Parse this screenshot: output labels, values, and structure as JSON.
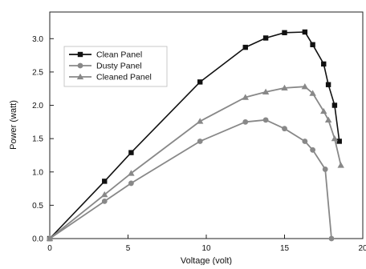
{
  "chart_data": {
    "type": "line",
    "title": "",
    "xlabel": "Voltage (volt)",
    "ylabel": "Power (watt)",
    "xlim": [
      0,
      20
    ],
    "ylim": [
      0,
      3.4
    ],
    "xticks": [
      0,
      5,
      10,
      15,
      20
    ],
    "yticks": [
      0.0,
      0.5,
      1.0,
      1.5,
      2.0,
      2.5,
      3.0
    ],
    "xtick_labels": [
      "0",
      "5",
      "10",
      "15",
      "20"
    ],
    "ytick_labels": [
      "0.0",
      "0.5",
      "1.0",
      "1.5",
      "2.0",
      "2.5",
      "3.0"
    ],
    "grid": false,
    "legend_position": "top-left",
    "series": [
      {
        "name": "Clean Panel",
        "marker": "square",
        "color": "#111111",
        "x": [
          0,
          3.5,
          5.2,
          9.6,
          12.5,
          13.8,
          15.0,
          16.3,
          16.8,
          17.5,
          17.8,
          18.2,
          18.5
        ],
        "y": [
          0,
          0.86,
          1.29,
          2.35,
          2.87,
          3.01,
          3.09,
          3.1,
          2.91,
          2.62,
          2.31,
          2.0,
          1.46
        ]
      },
      {
        "name": "Dusty Panel",
        "marker": "circle",
        "color": "#888888",
        "x": [
          0,
          3.5,
          5.2,
          9.6,
          12.5,
          13.8,
          15.0,
          16.3,
          16.8,
          17.6,
          18.0
        ],
        "y": [
          0,
          0.56,
          0.83,
          1.46,
          1.75,
          1.78,
          1.65,
          1.46,
          1.33,
          1.04,
          0
        ]
      },
      {
        "name": "Cleaned Panel",
        "marker": "triangle",
        "color": "#888888",
        "x": [
          0,
          3.5,
          5.2,
          9.6,
          12.5,
          13.8,
          15.0,
          16.3,
          16.8,
          17.5,
          17.8,
          18.2,
          18.6
        ],
        "y": [
          0,
          0.66,
          0.98,
          1.76,
          2.12,
          2.2,
          2.26,
          2.28,
          2.18,
          1.91,
          1.78,
          1.5,
          1.1
        ]
      }
    ]
  }
}
